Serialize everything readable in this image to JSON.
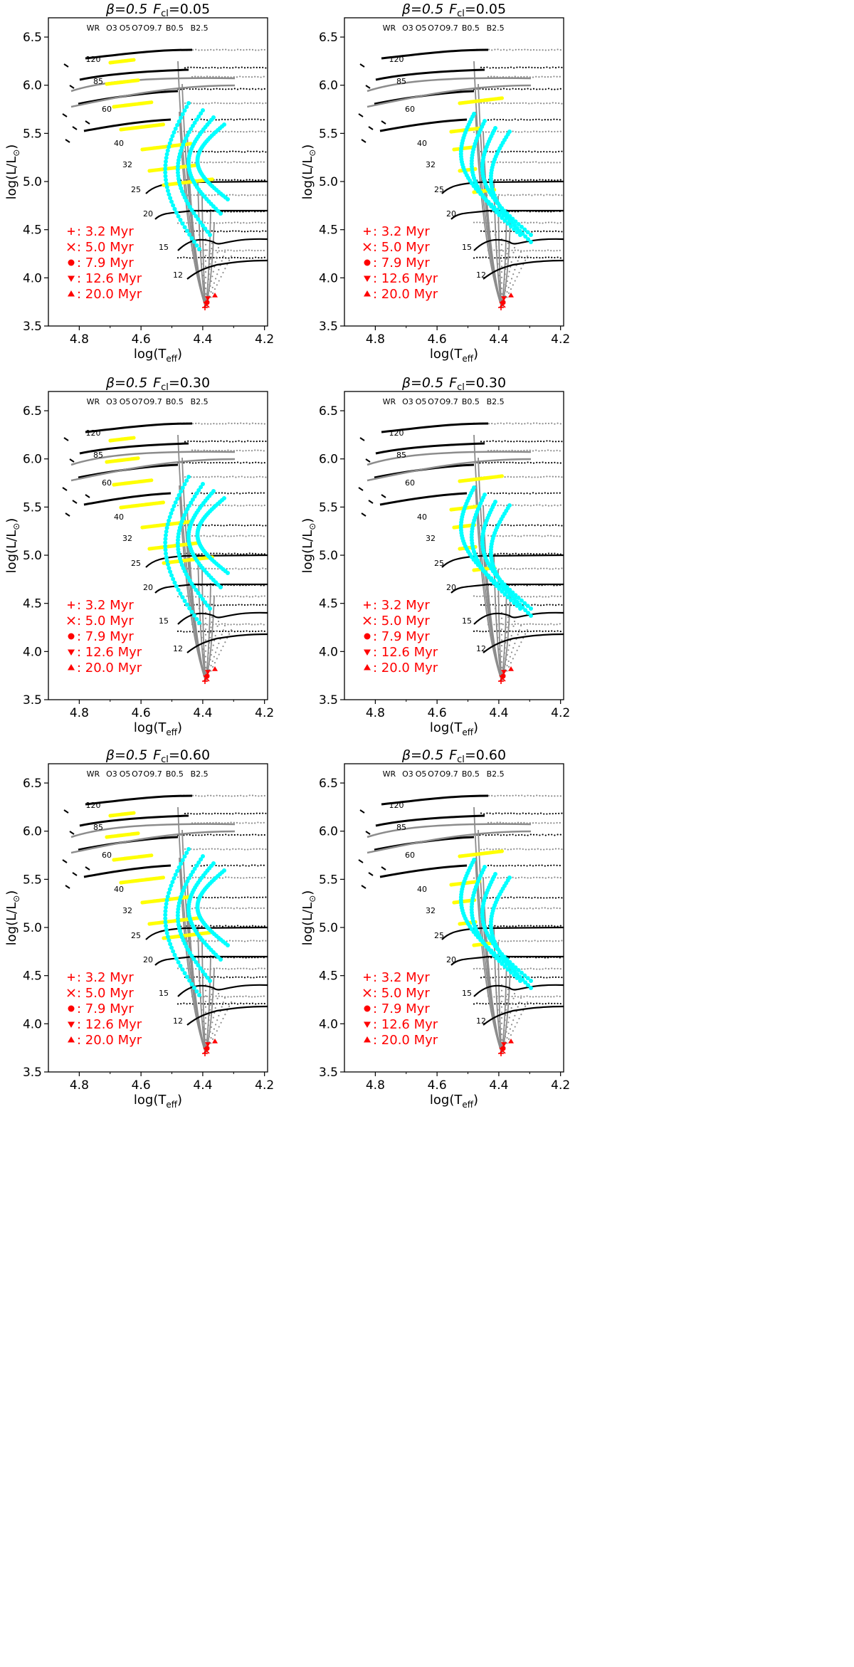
{
  "figure": {
    "axis_labels": {
      "x": "log(T",
      "x_sub": "eff",
      "x_close": ")",
      "y": "log(L/L",
      "y_sub": "⊙",
      "y_close": ")"
    },
    "x_ticks": [
      "4.8",
      "4.6",
      "4.4",
      "4.2"
    ],
    "y_ticks": [
      "3.5",
      "4.0",
      "4.5",
      "5.0",
      "5.5",
      "6.0",
      "6.5"
    ],
    "spectral_types": [
      {
        "label": "WR",
        "logT": 4.755
      },
      {
        "label": "O3",
        "logT": 4.695
      },
      {
        "label": "O5",
        "logT": 4.652
      },
      {
        "label": "O7",
        "logT": 4.612
      },
      {
        "label": "O9.7",
        "logT": 4.562
      },
      {
        "label": "B0.5",
        "logT": 4.491
      },
      {
        "label": "B2.5",
        "logT": 4.411
      }
    ],
    "mass_labels": [
      "120",
      "85",
      "60",
      "40",
      "32",
      "25",
      "20",
      "15",
      "12"
    ],
    "legend": [
      {
        "marker": "plus",
        "text": ":  3.2 Myr"
      },
      {
        "marker": "cross",
        "text": ":  5.0 Myr"
      },
      {
        "marker": "circle",
        "text": ":  7.9 Myr"
      },
      {
        "marker": "triangle-down",
        "text": ": 12.6 Myr"
      },
      {
        "marker": "triangle-up",
        "text": ": 20.0 Myr"
      }
    ],
    "colors": {
      "track_black": "#000000",
      "track_gray": "#8c8c8c",
      "highlight_yellow": "#ffff00",
      "highlight_cyan": "#00ffff",
      "legend_red": "#ff0000"
    }
  },
  "chart_data": [
    {
      "type": "scatter",
      "panel": "top-left",
      "title_beta": "β=0.5",
      "title_f": "F",
      "title_f_sub": "cl",
      "title_value": "=0.05",
      "xlim": [
        4.9,
        4.19
      ],
      "ylim": [
        3.5,
        6.7
      ],
      "legend_placement": "lower-left",
      "grid": false
    },
    {
      "type": "scatter",
      "panel": "top-right",
      "title_beta": "β=0.5",
      "title_f": "F",
      "title_f_sub": "cl",
      "title_value": "=0.05",
      "xlim": [
        4.9,
        4.19
      ],
      "ylim": [
        3.5,
        6.7
      ],
      "legend_placement": "lower-left",
      "grid": false
    },
    {
      "type": "scatter",
      "panel": "middle-left",
      "title_beta": "β=0.5",
      "title_f": "F",
      "title_f_sub": "cl",
      "title_value": "=0.30",
      "xlim": [
        4.9,
        4.19
      ],
      "ylim": [
        3.5,
        6.7
      ],
      "legend_placement": "lower-left",
      "grid": false
    },
    {
      "type": "scatter",
      "panel": "middle-right",
      "title_beta": "β=0.5",
      "title_f": "F",
      "title_f_sub": "cl",
      "title_value": "=0.30",
      "xlim": [
        4.9,
        4.19
      ],
      "ylim": [
        3.5,
        6.7
      ],
      "legend_placement": "lower-left",
      "grid": false
    },
    {
      "type": "scatter",
      "panel": "bottom-left",
      "title_beta": "β=0.5",
      "title_f": "F",
      "title_f_sub": "cl",
      "title_value": "=0.60",
      "xlim": [
        4.9,
        4.19
      ],
      "ylim": [
        3.5,
        6.7
      ],
      "legend_placement": "lower-left",
      "grid": false
    },
    {
      "type": "scatter",
      "panel": "bottom-right",
      "title_beta": "β=0.5",
      "title_f": "F",
      "title_f_sub": "cl",
      "title_value": "=0.60",
      "xlim": [
        4.9,
        4.19
      ],
      "ylim": [
        3.5,
        6.7
      ],
      "legend_placement": "lower-left",
      "grid": false
    }
  ]
}
